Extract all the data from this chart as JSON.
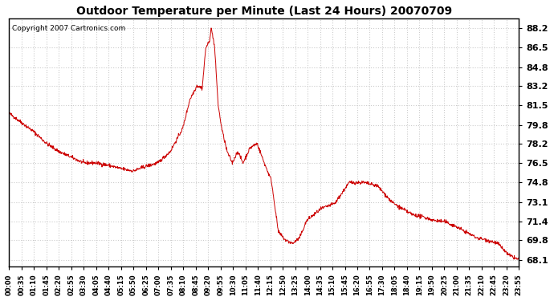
{
  "title": "Outdoor Temperature per Minute (Last 24 Hours) 20070709",
  "copyright": "Copyright 2007 Cartronics.com",
  "line_color": "#cc0000",
  "bg_color": "#ffffff",
  "plot_bg_color": "#ffffff",
  "grid_color": "#cccccc",
  "yticks": [
    68.1,
    69.8,
    71.4,
    73.1,
    74.8,
    76.5,
    78.2,
    79.8,
    81.5,
    83.2,
    84.8,
    86.5,
    88.2
  ],
  "ylim": [
    67.5,
    89.0
  ],
  "xtick_labels": [
    "00:00",
    "00:35",
    "01:10",
    "01:45",
    "02:20",
    "02:55",
    "03:30",
    "04:05",
    "04:40",
    "05:15",
    "05:50",
    "06:25",
    "07:00",
    "07:35",
    "08:10",
    "08:45",
    "09:20",
    "09:55",
    "10:30",
    "11:05",
    "11:40",
    "12:15",
    "12:50",
    "13:25",
    "14:00",
    "14:35",
    "15:10",
    "15:45",
    "16:20",
    "16:55",
    "17:30",
    "18:05",
    "18:40",
    "19:15",
    "19:50",
    "20:25",
    "21:00",
    "21:35",
    "22:10",
    "22:45",
    "23:20",
    "23:55"
  ],
  "keypoints_x": [
    0,
    35,
    70,
    105,
    140,
    175,
    210,
    245,
    280,
    315,
    350,
    385,
    420,
    455,
    490,
    510,
    530,
    545,
    555,
    565,
    570,
    575,
    580,
    590,
    600,
    615,
    630,
    645,
    660,
    680,
    700,
    720,
    740,
    760,
    780,
    800,
    820,
    840,
    860,
    880,
    920,
    960,
    1000,
    1040,
    1080,
    1110,
    1140,
    1170,
    1200,
    1230,
    1260,
    1290,
    1320,
    1350,
    1380,
    1410,
    1439
  ],
  "keypoints_y": [
    80.8,
    80.0,
    79.2,
    78.2,
    77.5,
    77.0,
    76.5,
    76.5,
    76.3,
    76.0,
    75.8,
    76.2,
    76.5,
    77.5,
    79.5,
    82.0,
    83.2,
    83.0,
    86.5,
    87.0,
    88.2,
    87.5,
    86.5,
    81.5,
    79.5,
    77.5,
    76.5,
    77.5,
    76.5,
    77.8,
    78.2,
    76.5,
    75.0,
    70.5,
    69.8,
    69.5,
    70.0,
    71.5,
    72.0,
    72.5,
    73.0,
    74.8,
    74.8,
    74.5,
    73.1,
    72.5,
    72.0,
    71.8,
    71.5,
    71.4,
    71.0,
    70.5,
    70.0,
    69.8,
    69.5,
    68.5,
    68.1
  ]
}
